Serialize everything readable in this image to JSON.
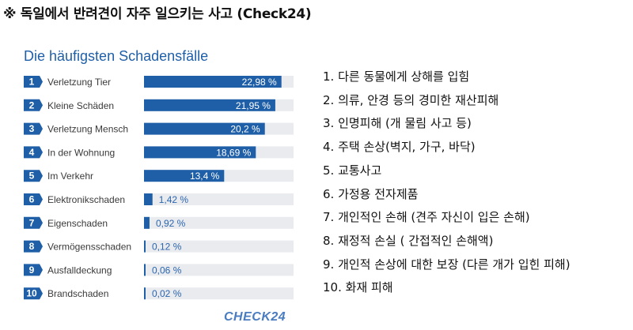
{
  "heading": "※ 독일에서 반려견이 자주 일으키는 사고 (Check24)",
  "panel_title": "Die häufigsten Schadensfälle",
  "brand": "CHECK24",
  "colors": {
    "bar": "#1f5fa8",
    "track": "#e9ebee",
    "accent": "#1f5fa8"
  },
  "chart_data": {
    "type": "bar",
    "orientation": "horizontal",
    "title": "Die häufigsten Schadensfälle",
    "ranks": [
      "1",
      "2",
      "3",
      "4",
      "5",
      "6",
      "7",
      "8",
      "9",
      "10"
    ],
    "categories": [
      "Verletzung Tier",
      "Kleine Schäden",
      "Verletzung Mensch",
      "In der Wohnung",
      "Im Verkehr",
      "Elektronikschaden",
      "Eigenschaden",
      "Vermögensschaden",
      "Ausfalldeckung",
      "Brandschaden"
    ],
    "values": [
      22.98,
      21.95,
      20.2,
      18.69,
      13.4,
      1.42,
      0.92,
      0.12,
      0.06,
      0.02
    ],
    "value_labels": [
      "22,98 %",
      "21,95 %",
      "20,2 %",
      "18,69 %",
      "13,4 %",
      "1,42 %",
      "0,92 %",
      "0,12 %",
      "0,06 %",
      "0,02 %"
    ],
    "xlim": [
      0,
      25
    ]
  },
  "translations": [
    "1.  다른 동물에게 상해를 입힘",
    "2.  의류, 안경 등의 경미한 재산피해",
    "3.  인명피해 (개 물림 사고 등)",
    "4.  주택 손상(벽지, 가구, 바닥)",
    "5.  교통사고",
    "6.  가정용 전자제품",
    "7.  개인적인 손해 (견주 자신이 입은 손해)",
    "8.  재정적 손실 ( 간접적인 손해액)",
    "9.  개인적 손상에 대한 보장 (다른 개가 입힌 피해)",
    "10.  화재 피해"
  ]
}
